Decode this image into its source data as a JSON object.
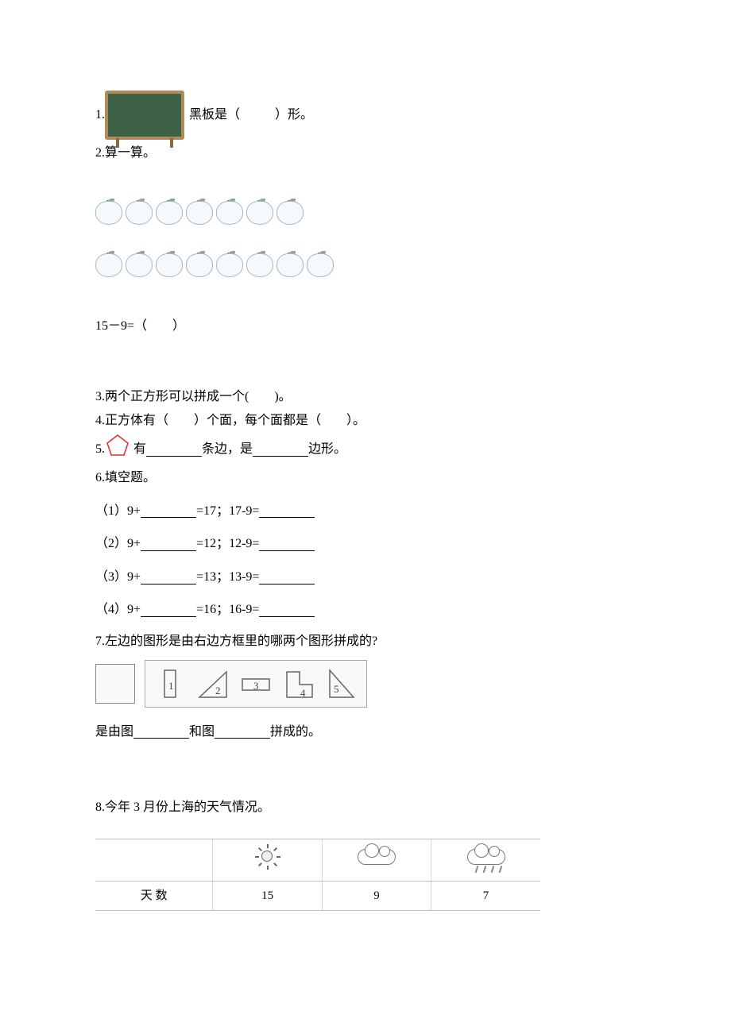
{
  "q1": {
    "num": "1.",
    "text_before": "黑板是（",
    "text_after": "）形。",
    "blackboard_fill": "#3e6246",
    "blackboard_frame": "#b08a5a"
  },
  "q2": {
    "num": "2.",
    "title": "算一算。",
    "row1_count": 7,
    "row2_count": 8,
    "expression": "15－9=（　　）"
  },
  "q3": {
    "num": "3.",
    "text": "两个正方形可以拼成一个(　　)。"
  },
  "q4": {
    "num": "4.",
    "text": "正方体有（　　）个面，每个面都是（　　）。"
  },
  "q5": {
    "num": "5.",
    "text_a": "有",
    "text_b": "条边，是",
    "text_c": "边形。",
    "pentagon_stroke": "#d62f2f"
  },
  "q6": {
    "num": "6.",
    "title": "填空题。",
    "items": [
      {
        "idx": "（1）",
        "lhs": "9+",
        "mid": "=17；17-9="
      },
      {
        "idx": "（2）",
        "lhs": "9+",
        "mid": "=12；12-9="
      },
      {
        "idx": "（3）",
        "lhs": "9+",
        "mid": "=13；13-9="
      },
      {
        "idx": "（4）",
        "lhs": "9+",
        "mid": "=16；16-9="
      }
    ]
  },
  "q7": {
    "num": "7.",
    "title": "左边的图形是由右边方框里的哪两个图形拼成的?",
    "options": [
      "1",
      "2",
      "3",
      "4",
      "5"
    ],
    "answer_prefix": "是由图",
    "answer_mid": "和图",
    "answer_suffix": "拼成的。"
  },
  "q8": {
    "num": "8.",
    "title": "今年 3 月份上海的天气情况。",
    "row_label": "天 数",
    "values": [
      "15",
      "9",
      "7"
    ],
    "weather": [
      "sunny",
      "cloudy",
      "rainy"
    ]
  }
}
